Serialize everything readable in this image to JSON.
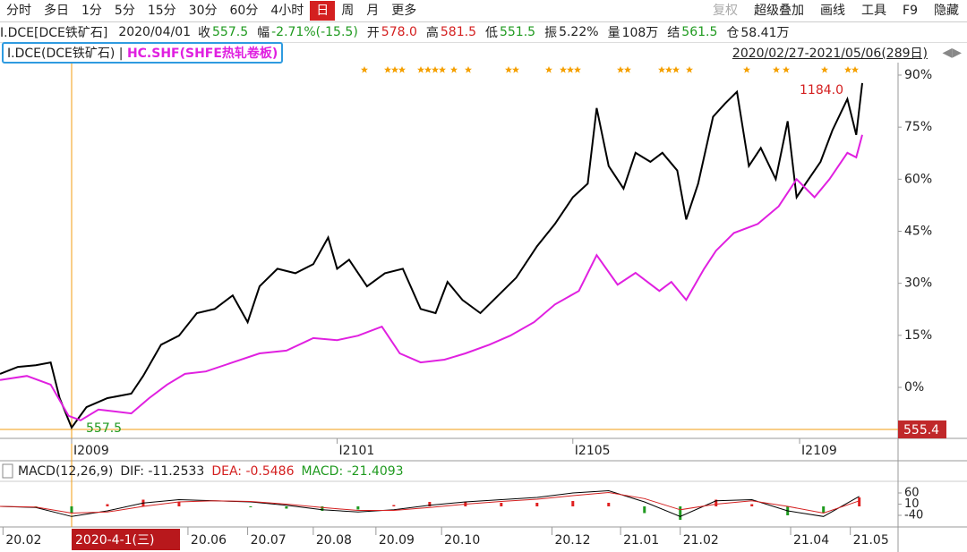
{
  "toolbar": {
    "left": [
      "分时",
      "多日",
      "1分",
      "5分",
      "15分",
      "30分",
      "60分",
      "4小时",
      "日",
      "周",
      "月",
      "更多"
    ],
    "active": 8,
    "right": [
      "复权",
      "超级叠加",
      "画线",
      "工具",
      "F9",
      "隐藏"
    ]
  },
  "info": {
    "title": "I.DCE[DCE铁矿石]",
    "date": "2020/04/01",
    "items": [
      {
        "label": "收",
        "value": "557.5",
        "color": "#1f9a1f"
      },
      {
        "label": "幅",
        "value": "-2.71%(-15.5)",
        "color": "#1f9a1f"
      },
      {
        "label": "开",
        "value": "578.0",
        "color": "#d42020"
      },
      {
        "label": "高",
        "value": "581.5",
        "color": "#d42020"
      },
      {
        "label": "低",
        "value": "551.5",
        "color": "#1f9a1f"
      },
      {
        "label": "振",
        "value": "5.22%",
        "color": "#222222"
      },
      {
        "label": "量",
        "value": "108万",
        "color": "#222222"
      },
      {
        "label": "结",
        "value": "561.5",
        "color": "#1f9a1f"
      },
      {
        "label": "仓",
        "value": "58.41万",
        "color": "#222222"
      }
    ]
  },
  "range": "2020/02/27-2021/05/06(289日)",
  "chart_data": [
    {
      "type": "line",
      "xlim": [
        0,
        301
      ],
      "ylim": [
        -14.7,
        93.6
      ],
      "yticks": [
        {
          "value": 90,
          "label": "90%"
        },
        {
          "value": 75,
          "label": "75%"
        },
        {
          "value": 60,
          "label": "60%"
        },
        {
          "value": 45,
          "label": "45%"
        },
        {
          "value": 30,
          "label": "30%"
        },
        {
          "value": 15,
          "label": "15%"
        },
        {
          "value": 0,
          "label": "0%"
        }
      ],
      "xticks": [
        {
          "value": 24,
          "label": "I2009"
        },
        {
          "value": 113,
          "label": "I2101"
        },
        {
          "value": 192,
          "label": "I2105"
        },
        {
          "value": 268,
          "label": "I2109"
        }
      ],
      "annotations": {
        "low": "557.5",
        "high": "1184.0",
        "price": "555.4"
      },
      "series": [
        {
          "name": "I.DCE(DCE铁矿石) | ",
          "color": "#000000",
          "x": [
            0,
            6,
            12,
            17,
            20,
            24,
            29,
            36,
            44,
            48,
            54,
            60,
            66,
            72,
            78,
            83,
            87,
            93,
            99,
            105,
            110,
            113,
            117,
            123,
            129,
            135,
            141,
            146,
            150,
            155,
            161,
            167,
            173,
            180,
            186,
            192,
            197,
            200,
            204,
            209,
            213,
            218,
            222,
            227,
            230,
            234,
            239,
            243,
            247,
            251,
            255,
            260,
            264,
            267,
            270,
            275,
            279,
            284,
            287,
            289
          ],
          "values": [
            3.9,
            5.9,
            6.4,
            7.2,
            -3.1,
            -11.6,
            -5.7,
            -3.1,
            -1.8,
            3.3,
            12.3,
            14.9,
            21.4,
            22.6,
            26.5,
            18.8,
            29.1,
            34.2,
            32.9,
            35.5,
            43.2,
            34.2,
            36.8,
            29.1,
            32.9,
            34.2,
            22.6,
            21.4,
            30.4,
            25.2,
            21.4,
            26.5,
            31.6,
            40.7,
            47.1,
            54.8,
            58.7,
            80.5,
            63.8,
            57.3,
            67.6,
            65.0,
            67.6,
            62.5,
            48.4,
            58.7,
            78.0,
            81.8,
            85.2,
            63.8,
            69.0,
            60.0,
            76.7,
            54.8,
            58.7,
            65.0,
            74.1,
            83.1,
            72.8,
            87.7
          ]
        },
        {
          "name": "HC.SHF(SHFE热轧卷板)",
          "color": "#e020e0",
          "x": [
            0,
            9,
            17,
            23,
            27,
            33,
            44,
            50,
            56,
            62,
            69,
            78,
            87,
            96,
            105,
            113,
            120,
            128,
            134,
            141,
            149,
            156,
            164,
            171,
            179,
            186,
            194,
            200,
            207,
            213,
            221,
            225,
            230,
            236,
            240,
            246,
            254,
            261,
            267,
            273,
            278,
            284,
            287,
            289
          ],
          "values": [
            2.1,
            3.3,
            0.8,
            -8.2,
            -9.5,
            -6.4,
            -7.5,
            -3.1,
            0.8,
            3.9,
            4.6,
            7.2,
            9.8,
            10.6,
            14.2,
            13.6,
            14.9,
            17.5,
            9.8,
            7.2,
            8.0,
            9.8,
            12.3,
            14.9,
            18.8,
            23.9,
            27.8,
            38.1,
            29.6,
            33.0,
            27.8,
            30.4,
            25.2,
            34.2,
            39.4,
            44.5,
            47.1,
            52.2,
            60.0,
            54.8,
            60.0,
            67.6,
            66.3,
            72.8
          ]
        }
      ]
    },
    {
      "type": "macd",
      "title": "MACD(12,26,9)",
      "dif_label": "DIF: -11.2533",
      "dea_label": "DEA: -0.5486",
      "macd_label": "MACD: -21.4093",
      "xlim": [
        0,
        301
      ],
      "ylim": [
        -88,
        104
      ],
      "yticks": [
        60,
        10,
        -40
      ],
      "up_color": "#e02020",
      "down_color": "#1f9a1f",
      "x": [
        0,
        12,
        24,
        36,
        48,
        60,
        72,
        84,
        96,
        108,
        120,
        132,
        144,
        156,
        168,
        180,
        192,
        204,
        216,
        228,
        240,
        252,
        264,
        276,
        288
      ],
      "series": [
        {
          "name": "DIF",
          "color": "#000000",
          "values": [
            0,
            -5,
            -45,
            -20,
            15,
            30,
            25,
            20,
            5,
            -15,
            -25,
            -15,
            5,
            20,
            30,
            40,
            60,
            70,
            20,
            -45,
            25,
            30,
            -20,
            -45,
            45
          ]
        },
        {
          "name": "DEA",
          "color": "#d42020",
          "values": [
            0,
            -3,
            -30,
            -25,
            0,
            20,
            25,
            22,
            10,
            -5,
            -18,
            -18,
            -5,
            10,
            22,
            32,
            48,
            62,
            35,
            -15,
            10,
            25,
            0,
            -30,
            25
          ]
        },
        {
          "name": "MACD",
          "values": [
            0,
            -4,
            -30,
            10,
            30,
            20,
            0,
            -4,
            -10,
            -20,
            -14,
            6,
            20,
            20,
            16,
            16,
            24,
            16,
            -30,
            -60,
            30,
            10,
            -40,
            -30,
            40
          ]
        }
      ],
      "xticks": [
        {
          "value": 1,
          "label": "20.02"
        },
        {
          "value": 63,
          "label": "20.06"
        },
        {
          "value": 83,
          "label": "20.07"
        },
        {
          "value": 105,
          "label": "20.08"
        },
        {
          "value": 126,
          "label": "20.09"
        },
        {
          "value": 148,
          "label": "20.10"
        },
        {
          "value": 185,
          "label": "20.12"
        },
        {
          "value": 208,
          "label": "21.01"
        },
        {
          "value": 228,
          "label": "21.02"
        },
        {
          "value": 265,
          "label": "21.04"
        },
        {
          "value": 285,
          "label": "21.05"
        }
      ],
      "cursor_date": "2020-4-1(三)"
    }
  ]
}
